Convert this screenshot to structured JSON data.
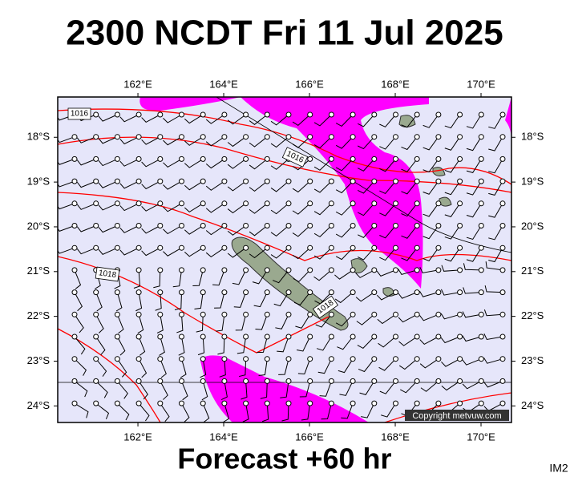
{
  "header": {
    "title": "2300 NCDT Fri 11 Jul 2025"
  },
  "map": {
    "lon_range": [
      160.13,
      170.71
    ],
    "lat_range": [
      17.1,
      24.37
    ],
    "lon_ticks": [
      {
        "value": 162,
        "label": "162°E"
      },
      {
        "value": 164,
        "label": "164°E"
      },
      {
        "value": 166,
        "label": "166°E"
      },
      {
        "value": 168,
        "label": "168°E"
      },
      {
        "value": 170,
        "label": "170°E"
      }
    ],
    "lat_ticks": [
      {
        "value": 18,
        "label": "18°S"
      },
      {
        "value": 19,
        "label": "19°S"
      },
      {
        "value": 20,
        "label": "20°S"
      },
      {
        "value": 21,
        "label": "21°S"
      },
      {
        "value": 22,
        "label": "22°S"
      },
      {
        "value": 23,
        "label": "23°S"
      },
      {
        "value": 24,
        "label": "24°S"
      }
    ],
    "isobar_labels": [
      "1016",
      "1016",
      "1018",
      "1018"
    ],
    "copyright": "Copyright metvuw.com"
  },
  "footer": {
    "caption": "Forecast +60 hr",
    "code": "IM2"
  }
}
